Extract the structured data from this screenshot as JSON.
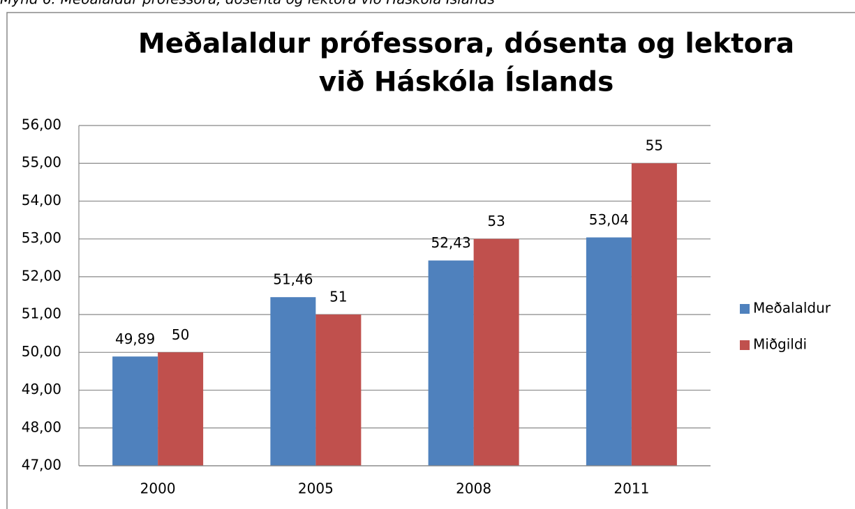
{
  "caption": "Mynd 6: Meðalaldur prófessora, dósenta og lektora við Háskóla Íslands",
  "chart_data": {
    "type": "bar",
    "title": [
      "Meðalaldur prófessora, dósenta og lektora",
      "við Háskóla Íslands"
    ],
    "categories": [
      "2000",
      "2005",
      "2008",
      "2011"
    ],
    "series": [
      {
        "name": "Meðalaldur",
        "color": "#4f81bd",
        "values": [
          49.89,
          51.46,
          52.43,
          53.04
        ],
        "value_labels": [
          "49,89",
          "51,46",
          "52,43",
          "53,04"
        ]
      },
      {
        "name": "Miðgildi",
        "color": "#c0504d",
        "values": [
          50,
          51,
          53,
          55
        ]
      }
    ],
    "ylim": [
      47,
      56
    ],
    "yticks": [
      {
        "value": 47,
        "label": "47,00"
      },
      {
        "value": 48,
        "label": "48,00"
      },
      {
        "value": 49,
        "label": "49,00"
      },
      {
        "value": 50,
        "label": "50,00"
      },
      {
        "value": 51,
        "label": "51,00"
      },
      {
        "value": 52,
        "label": "52,00"
      },
      {
        "value": 53,
        "label": "53,00"
      },
      {
        "value": 54,
        "label": "54,00"
      },
      {
        "value": 55,
        "label": "55,00"
      },
      {
        "value": 56,
        "label": "56,00"
      }
    ],
    "grid": true,
    "legend": "right"
  }
}
